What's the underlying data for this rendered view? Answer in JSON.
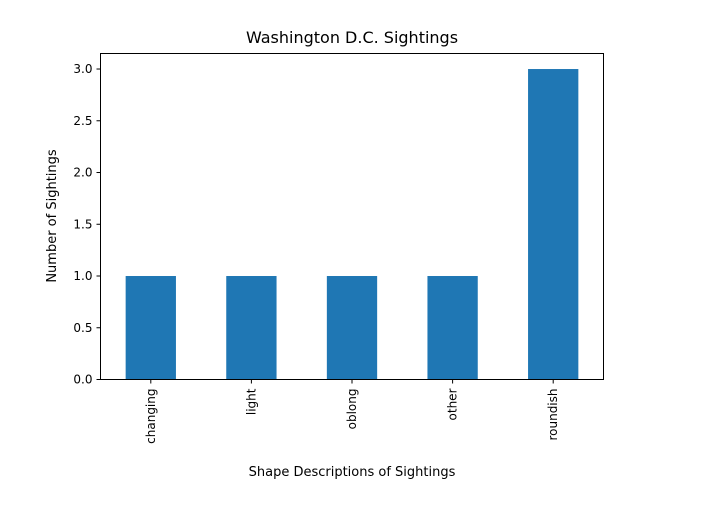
{
  "chart_data": {
    "type": "bar",
    "title": "Washington D.C. Sightings",
    "xlabel": "Shape Descriptions of Sightings",
    "ylabel": "Number of Sightings",
    "categories": [
      "changing",
      "light",
      "oblong",
      "other",
      "roundish"
    ],
    "values": [
      1,
      1,
      1,
      1,
      3
    ],
    "ylim": [
      0,
      3.15
    ],
    "yticks": [
      "0.0",
      "0.5",
      "1.0",
      "1.5",
      "2.0",
      "2.5",
      "3.0"
    ],
    "bar_color": "#1f77b4",
    "grid": false,
    "legend": "none"
  }
}
